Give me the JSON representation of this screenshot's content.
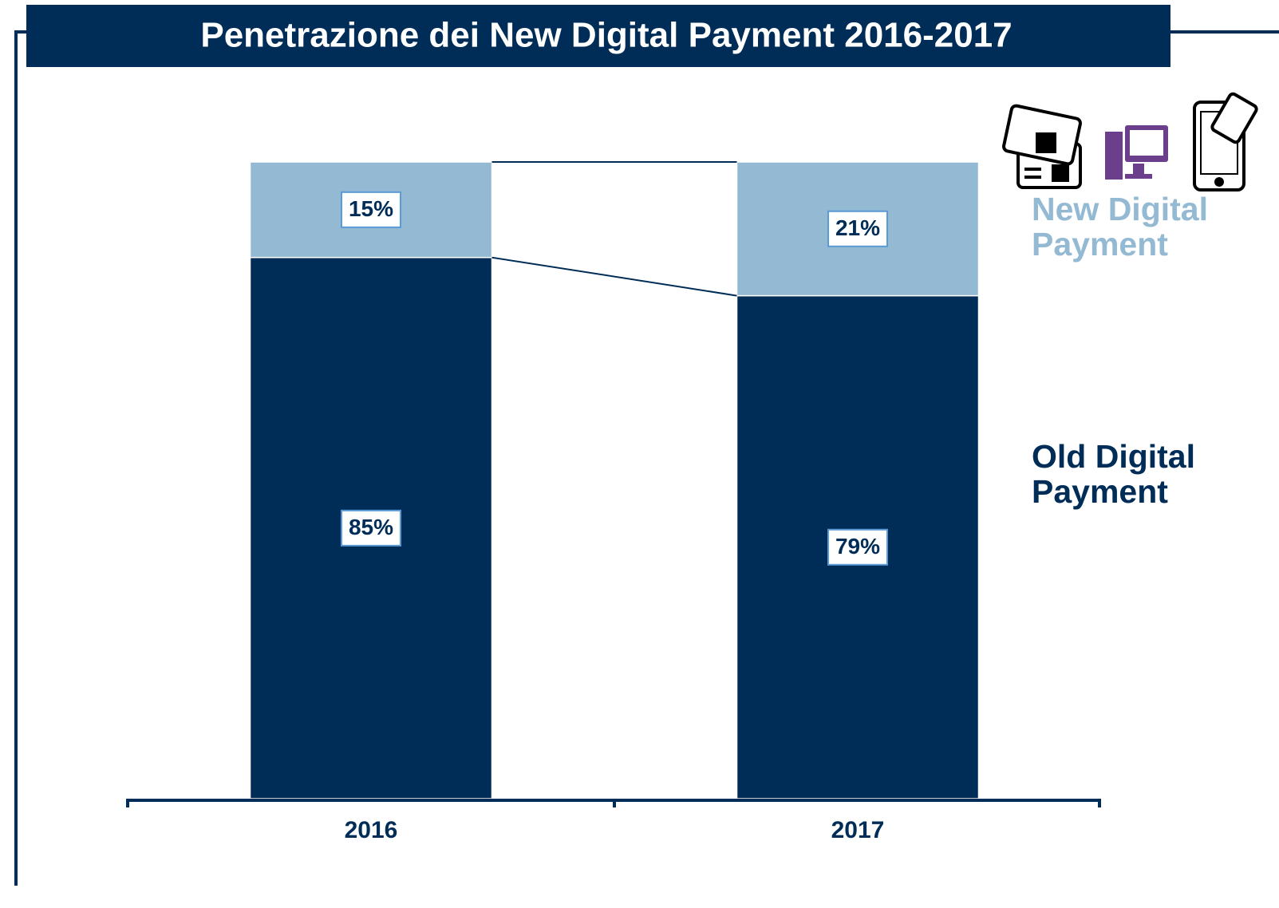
{
  "chart_data": {
    "type": "bar",
    "stacked": true,
    "title": "Penetrazione dei New Digital Payment 2016-2017",
    "categories": [
      "2016",
      "2017"
    ],
    "series": [
      {
        "name": "Old Digital Payment",
        "color": "#002d57",
        "values": [
          85,
          79
        ],
        "value_labels": [
          "85%",
          "79%"
        ]
      },
      {
        "name": "New Digital Payment",
        "color": "#93b9d3",
        "values": [
          15,
          21
        ],
        "value_labels": [
          "15%",
          "21%"
        ]
      }
    ],
    "ylim": [
      0,
      100
    ]
  }
}
